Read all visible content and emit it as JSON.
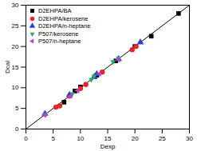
{
  "chart_data": {
    "type": "scatter",
    "x_label": "Dexp",
    "y_label": "Dcal",
    "xlim": [
      0,
      30
    ],
    "ylim": [
      0,
      30
    ],
    "xticks": [
      0,
      5,
      10,
      15,
      20,
      25,
      30
    ],
    "yticks": [
      0,
      5,
      10,
      15,
      20,
      25,
      30
    ],
    "grid": false,
    "legend": "upper left",
    "series": [
      {
        "type": "line",
        "color": "#000000",
        "line_style": "solid",
        "x": [
          0,
          30
        ],
        "values": [
          0,
          30
        ]
      },
      {
        "name": "D2EHPA/BA",
        "color": "#000000",
        "marker": "square",
        "x": [
          7,
          9,
          10,
          13,
          16.5,
          20,
          23,
          28
        ],
        "values": [
          6.5,
          9.2,
          10.2,
          13,
          16.5,
          20,
          22.5,
          28
        ]
      },
      {
        "name": "D2EHPA/kerosene",
        "color": "#e8242a",
        "marker": "circle",
        "x": [
          5.5,
          6.2,
          8,
          10,
          11,
          14,
          19.5,
          20.2
        ],
        "values": [
          5.3,
          5.6,
          8,
          9.8,
          10.8,
          13.8,
          19.2,
          20
        ]
      },
      {
        "name": "D2EHPA/n-heptane",
        "color": "#2a3fd6",
        "marker": "triangle",
        "x": [
          3.5,
          8,
          12.5,
          13,
          17,
          21
        ],
        "values": [
          3.7,
          8.3,
          12.6,
          13.3,
          17,
          21
        ]
      },
      {
        "name": "P507/kerosene",
        "color": "#2aa866",
        "marker": "triangle-down",
        "x": [
          3.5,
          8.5,
          12,
          12.5,
          16,
          17
        ],
        "values": [
          3.5,
          8.5,
          12,
          12.8,
          16.3,
          17.2
        ]
      },
      {
        "name": "P507/n-heptane",
        "color": "#c040c0",
        "marker": "triangle-left",
        "x": [
          3.5,
          8.2,
          9.5,
          13.5,
          17
        ],
        "values": [
          3.4,
          8,
          9.3,
          13.4,
          16.8
        ]
      }
    ]
  }
}
